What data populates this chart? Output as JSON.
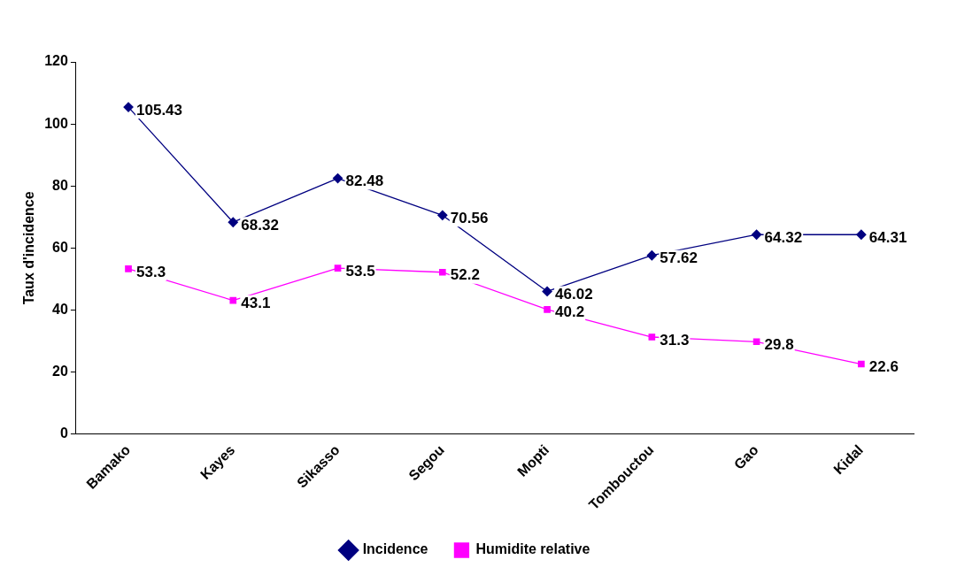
{
  "chart_data": {
    "type": "line",
    "ylabel": "Taux d'incidence",
    "categories": [
      "Bamako",
      "Kayes",
      "Sikasso",
      "Segou",
      "Mopti",
      "Tombouctou",
      "Gao",
      "Kidal"
    ],
    "series": [
      {
        "name": "Incidence",
        "color": "#000080",
        "marker": "diamond",
        "values": [
          105.43,
          68.32,
          82.48,
          70.56,
          46.02,
          57.62,
          64.32,
          64.31
        ]
      },
      {
        "name": "Humidite relative",
        "color": "#ff00ff",
        "marker": "square",
        "values": [
          53.3,
          43.1,
          53.5,
          52.2,
          40.2,
          31.3,
          29.8,
          22.6
        ]
      }
    ],
    "ylim": [
      0,
      120
    ],
    "yticks": [
      0,
      20,
      40,
      60,
      80,
      100,
      120
    ],
    "grid": false,
    "legend": "bottom",
    "data_labels": true,
    "line_style": "solid"
  }
}
